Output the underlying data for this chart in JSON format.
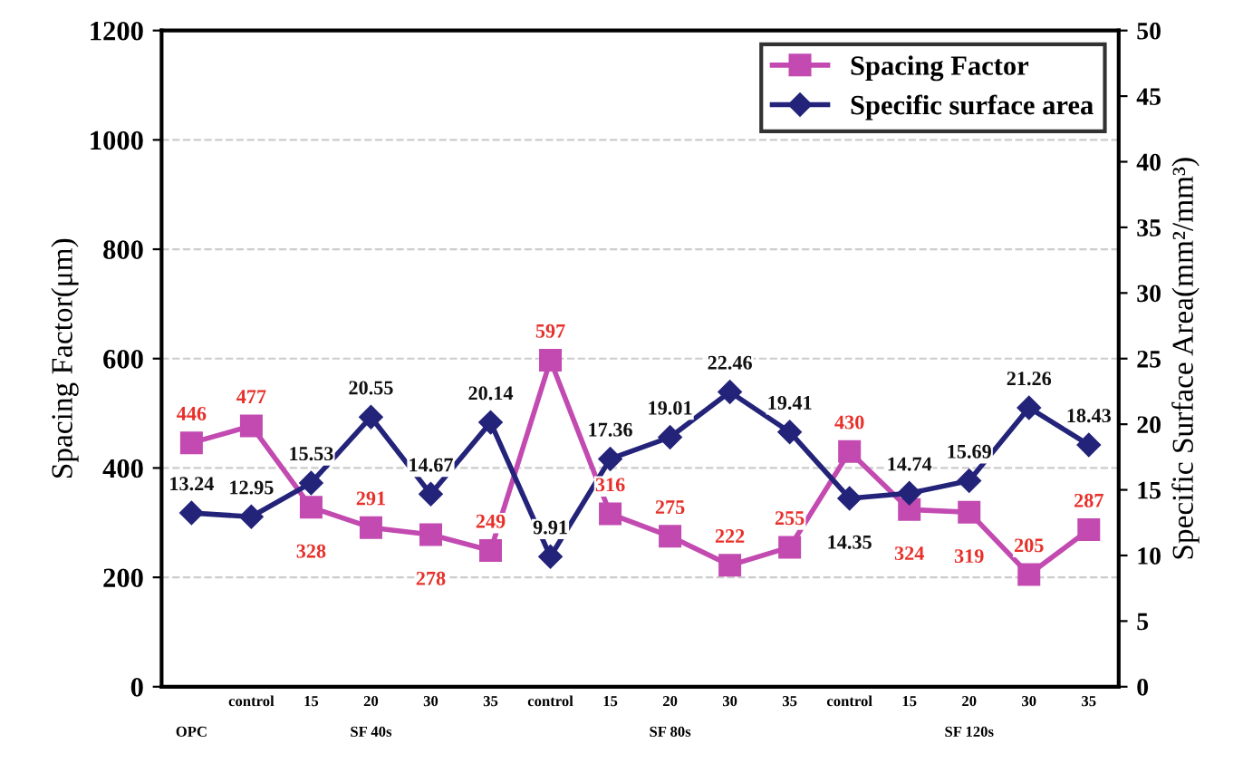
{
  "chart_data": {
    "type": "line",
    "xlabel": null,
    "ylabel": "Spacing Factor(μm)",
    "y2label": "Specific Surface Area(mm²/mm³)",
    "categories": [
      null,
      "control",
      "15",
      "20",
      "30",
      "35",
      "control",
      "15",
      "20",
      "30",
      "35",
      "control",
      "15",
      "20",
      "30",
      "35"
    ],
    "annotations": [
      "OPC",
      "SF 40s",
      "SF 80s",
      "SF 120s"
    ],
    "series": [
      {
        "name": "Spacing Factor",
        "color": "#c24ab0",
        "marker": "square",
        "values": [
          446,
          477,
          328,
          291,
          278,
          249,
          597,
          316,
          275,
          222,
          255,
          430,
          324,
          319,
          205,
          287
        ]
      },
      {
        "name": "Specific surface area",
        "color": "#23237a",
        "marker": "diamond",
        "axis": "y2",
        "values": [
          13.24,
          12.95,
          15.53,
          20.55,
          14.67,
          20.14,
          9.91,
          17.36,
          19.01,
          22.46,
          19.41,
          14.35,
          14.74,
          15.69,
          21.26,
          18.43
        ]
      }
    ],
    "ylim": [
      0,
      1200
    ],
    "yticks": [
      0,
      200,
      400,
      600,
      800,
      1000,
      1200
    ],
    "y2lim": [
      0,
      50
    ],
    "y2ticks": [
      0,
      5,
      10,
      15,
      20,
      25,
      30,
      35,
      40,
      45,
      50
    ],
    "grid": "y",
    "legend": "top right",
    "data_labels": true
  }
}
